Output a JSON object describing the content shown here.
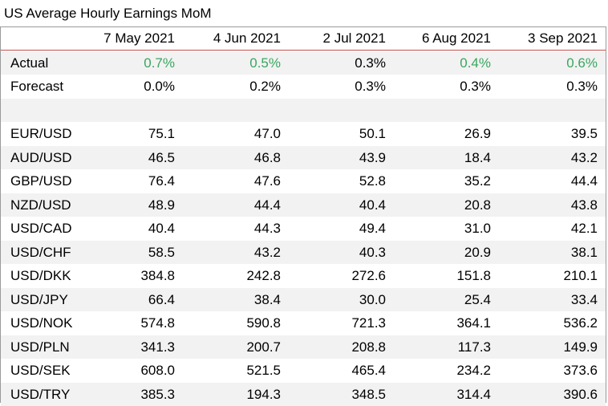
{
  "title": "US Average Hourly Earnings MoM",
  "columns": [
    "7 May 2021",
    "4 Jun 2021",
    "2 Jul 2021",
    "6 Aug 2021",
    "3 Sep 2021"
  ],
  "colors": {
    "positive": "#3aa660",
    "accent_line": "#c0504d",
    "shade": "#f2f2f2"
  },
  "rows": [
    {
      "label": "Actual",
      "values": [
        "0.7%",
        "0.5%",
        "0.3%",
        "0.4%",
        "0.6%"
      ],
      "green": [
        true,
        true,
        false,
        true,
        true
      ]
    },
    {
      "label": "Forecast",
      "values": [
        "0.0%",
        "0.2%",
        "0.3%",
        "0.3%",
        "0.3%"
      ]
    },
    {
      "label": "",
      "values": [
        "",
        "",
        "",
        "",
        ""
      ]
    },
    {
      "label": "EUR/USD",
      "values": [
        "75.1",
        "47.0",
        "50.1",
        "26.9",
        "39.5"
      ]
    },
    {
      "label": "AUD/USD",
      "values": [
        "46.5",
        "46.8",
        "43.9",
        "18.4",
        "43.2"
      ]
    },
    {
      "label": "GBP/USD",
      "values": [
        "76.4",
        "47.6",
        "52.8",
        "35.2",
        "44.4"
      ]
    },
    {
      "label": "NZD/USD",
      "values": [
        "48.9",
        "44.4",
        "40.4",
        "20.8",
        "43.8"
      ]
    },
    {
      "label": "USD/CAD",
      "values": [
        "40.4",
        "44.3",
        "49.4",
        "31.0",
        "42.1"
      ]
    },
    {
      "label": "USD/CHF",
      "values": [
        "58.5",
        "43.2",
        "40.3",
        "20.9",
        "38.1"
      ]
    },
    {
      "label": "USD/DKK",
      "values": [
        "384.8",
        "242.8",
        "272.6",
        "151.8",
        "210.1"
      ]
    },
    {
      "label": "USD/JPY",
      "values": [
        "66.4",
        "38.4",
        "30.0",
        "25.4",
        "33.4"
      ]
    },
    {
      "label": "USD/NOK",
      "values": [
        "574.8",
        "590.8",
        "721.3",
        "364.1",
        "536.2"
      ]
    },
    {
      "label": "USD/PLN",
      "values": [
        "341.3",
        "200.7",
        "208.8",
        "117.3",
        "149.9"
      ]
    },
    {
      "label": "USD/SEK",
      "values": [
        "608.0",
        "521.5",
        "465.4",
        "234.2",
        "373.6"
      ]
    },
    {
      "label": "USD/TRY",
      "values": [
        "385.3",
        "194.3",
        "348.5",
        "314.4",
        "390.6"
      ]
    }
  ]
}
